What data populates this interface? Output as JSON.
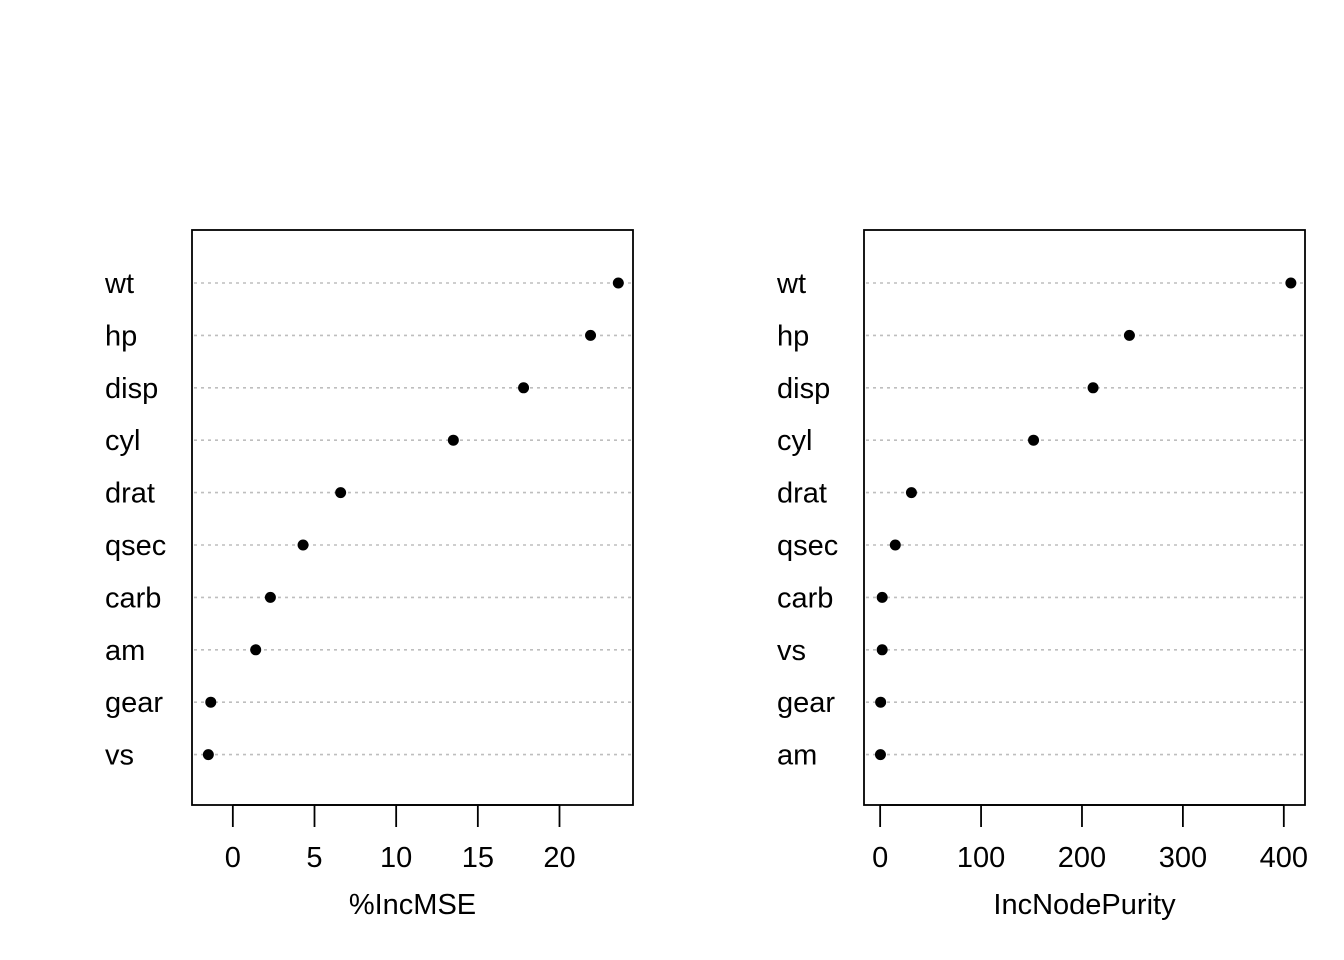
{
  "chart_data": [
    {
      "type": "scatter",
      "variant": "dotchart",
      "xlabel": "%IncMSE",
      "categories": [
        "wt",
        "hp",
        "disp",
        "cyl",
        "drat",
        "qsec",
        "carb",
        "am",
        "gear",
        "vs"
      ],
      "values": [
        23.6,
        21.9,
        17.8,
        13.5,
        6.6,
        4.3,
        2.3,
        1.4,
        -1.35,
        -1.5
      ],
      "xlim": [
        -2.5,
        24.5
      ],
      "xticks": [
        0,
        5,
        10,
        15,
        20
      ],
      "grid": "dotted horizontal"
    },
    {
      "type": "scatter",
      "variant": "dotchart",
      "xlabel": "IncNodePurity",
      "categories": [
        "wt",
        "hp",
        "disp",
        "cyl",
        "drat",
        "qsec",
        "carb",
        "vs",
        "gear",
        "am"
      ],
      "values": [
        407,
        247,
        211,
        152,
        31,
        15,
        2,
        2,
        0.5,
        0.3
      ],
      "xlim": [
        -16,
        421
      ],
      "xticks": [
        0,
        100,
        200,
        300,
        400
      ],
      "grid": "dotted horizontal"
    }
  ]
}
